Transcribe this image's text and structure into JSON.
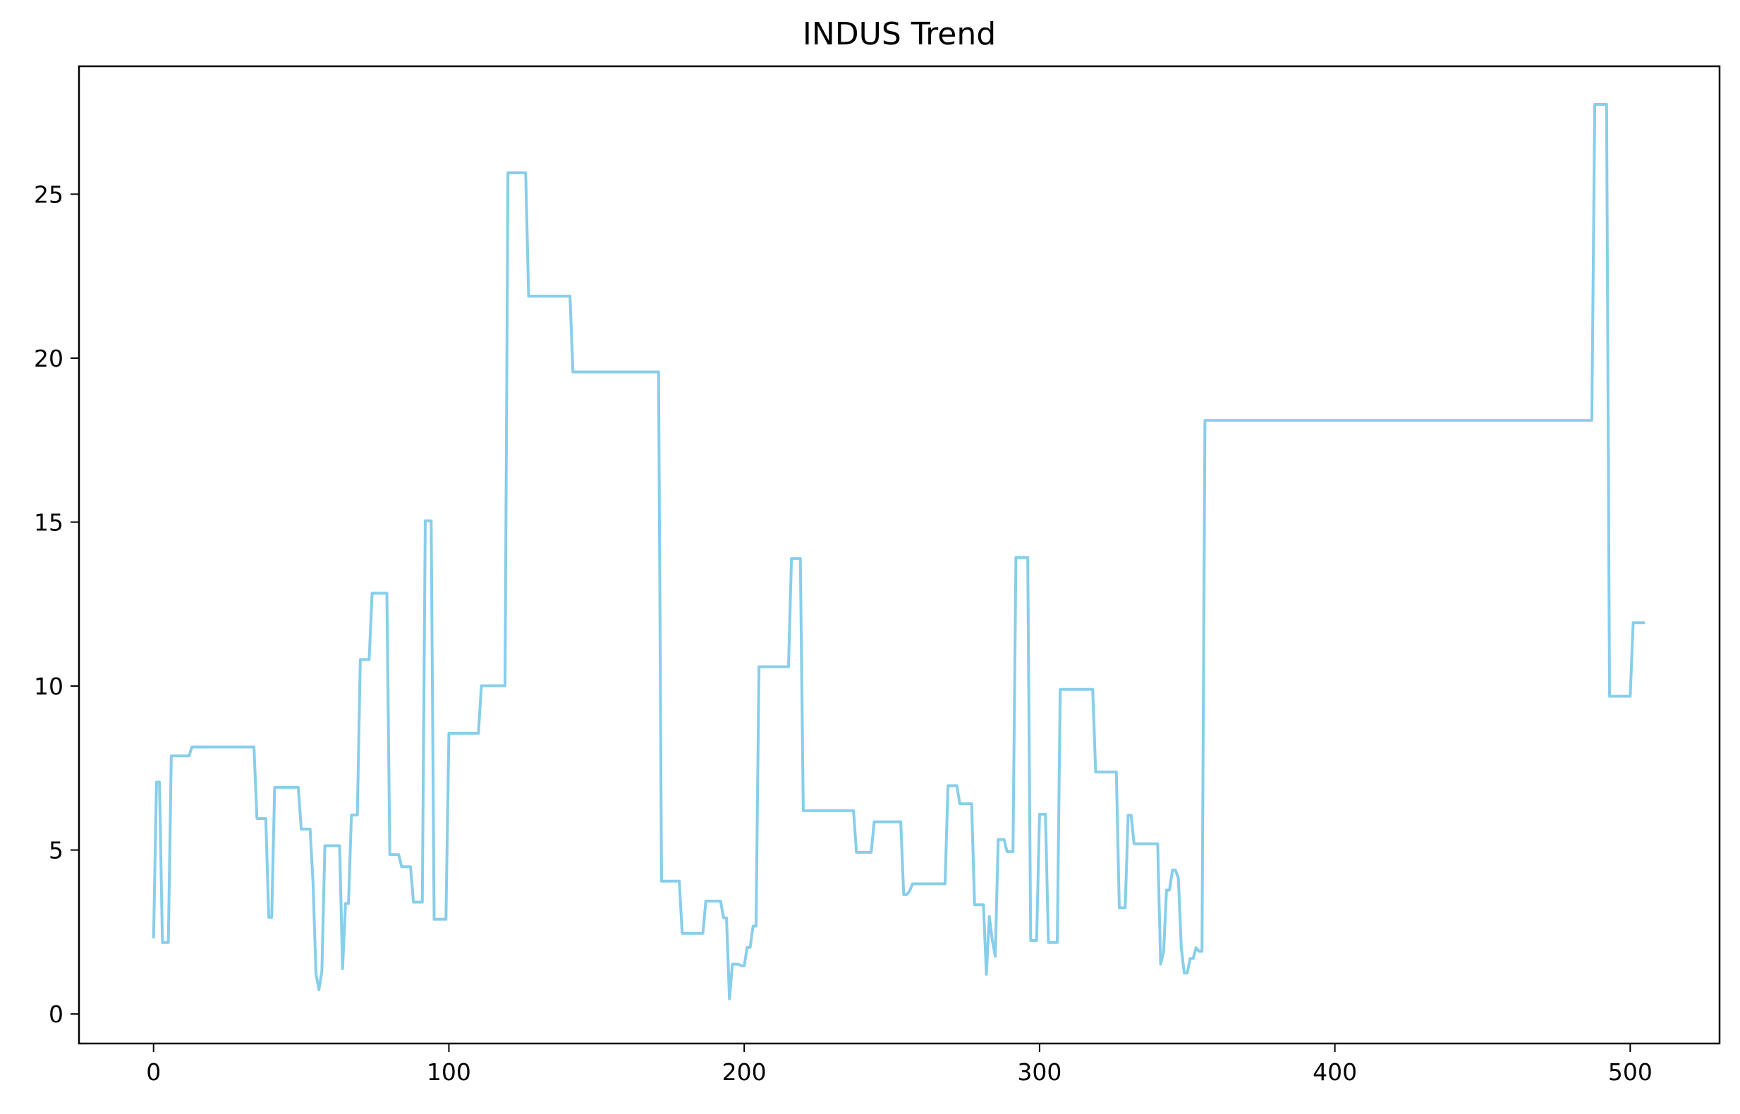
{
  "chart_data": {
    "type": "line",
    "title": "INDUS Trend",
    "xlabel": "",
    "ylabel": "",
    "xlim": [
      -25.25,
      530.25
    ],
    "ylim": [
      -0.9,
      28.9
    ],
    "xticks": [
      0,
      100,
      200,
      300,
      400,
      500
    ],
    "yticks": [
      0,
      5,
      10,
      15,
      20,
      25
    ],
    "grid": false,
    "legend": "none",
    "series": [
      {
        "color": "#87ceeb",
        "points": [
          [
            0,
            2.31
          ],
          [
            1,
            7.07
          ],
          [
            2,
            7.07
          ],
          [
            3,
            2.18
          ],
          [
            4,
            2.18
          ],
          [
            5,
            2.18
          ],
          [
            6,
            7.87
          ],
          [
            12,
            7.87
          ],
          [
            13,
            8.14
          ],
          [
            34,
            8.14
          ],
          [
            35,
            5.96
          ],
          [
            38,
            5.96
          ],
          [
            39,
            2.95
          ],
          [
            40,
            2.95
          ],
          [
            41,
            6.91
          ],
          [
            49,
            6.91
          ],
          [
            50,
            5.64
          ],
          [
            53,
            5.64
          ],
          [
            54,
            4.0
          ],
          [
            55,
            1.22
          ],
          [
            56,
            0.74
          ],
          [
            57,
            1.32
          ],
          [
            58,
            5.13
          ],
          [
            63,
            5.13
          ],
          [
            64,
            1.38
          ],
          [
            65,
            3.37
          ],
          [
            66,
            3.37
          ],
          [
            67,
            6.07
          ],
          [
            69,
            6.07
          ],
          [
            70,
            10.81
          ],
          [
            73,
            10.81
          ],
          [
            74,
            12.83
          ],
          [
            79,
            12.83
          ],
          [
            80,
            4.86
          ],
          [
            83,
            4.86
          ],
          [
            84,
            4.49
          ],
          [
            87,
            4.49
          ],
          [
            88,
            3.41
          ],
          [
            91,
            3.41
          ],
          [
            92,
            15.04
          ],
          [
            94,
            15.04
          ],
          [
            95,
            2.89
          ],
          [
            99,
            2.89
          ],
          [
            100,
            8.56
          ],
          [
            110,
            8.56
          ],
          [
            111,
            10.01
          ],
          [
            119,
            10.01
          ],
          [
            120,
            25.65
          ],
          [
            126,
            25.65
          ],
          [
            127,
            21.89
          ],
          [
            141,
            21.89
          ],
          [
            142,
            19.58
          ],
          [
            171,
            19.58
          ],
          [
            172,
            4.05
          ],
          [
            178,
            4.05
          ],
          [
            179,
            2.46
          ],
          [
            186,
            2.46
          ],
          [
            187,
            3.44
          ],
          [
            192,
            3.44
          ],
          [
            193,
            2.93
          ],
          [
            194,
            2.93
          ],
          [
            195,
            0.46
          ],
          [
            196,
            1.52
          ],
          [
            198,
            1.52
          ],
          [
            199,
            1.47
          ],
          [
            200,
            1.47
          ],
          [
            201,
            2.03
          ],
          [
            202,
            2.03
          ],
          [
            203,
            2.68
          ],
          [
            204,
            2.68
          ],
          [
            205,
            10.59
          ],
          [
            215,
            10.59
          ],
          [
            216,
            13.89
          ],
          [
            219,
            13.89
          ],
          [
            220,
            6.2
          ],
          [
            237,
            6.2
          ],
          [
            238,
            4.93
          ],
          [
            243,
            4.93
          ],
          [
            244,
            5.86
          ],
          [
            253,
            5.86
          ],
          [
            254,
            3.64
          ],
          [
            255,
            3.64
          ],
          [
            256,
            3.75
          ],
          [
            257,
            3.97
          ],
          [
            268,
            3.97
          ],
          [
            269,
            6.96
          ],
          [
            272,
            6.96
          ],
          [
            273,
            6.41
          ],
          [
            277,
            6.41
          ],
          [
            278,
            3.33
          ],
          [
            281,
            3.33
          ],
          [
            282,
            1.21
          ],
          [
            283,
            2.97
          ],
          [
            284,
            2.25
          ],
          [
            285,
            1.76
          ],
          [
            286,
            5.32
          ],
          [
            288,
            5.32
          ],
          [
            289,
            4.95
          ],
          [
            291,
            4.95
          ],
          [
            292,
            13.92
          ],
          [
            296,
            13.92
          ],
          [
            297,
            2.24
          ],
          [
            299,
            2.24
          ],
          [
            300,
            6.09
          ],
          [
            302,
            6.09
          ],
          [
            303,
            2.18
          ],
          [
            306,
            2.18
          ],
          [
            307,
            9.9
          ],
          [
            318,
            9.9
          ],
          [
            319,
            7.38
          ],
          [
            326,
            7.38
          ],
          [
            327,
            3.24
          ],
          [
            329,
            3.24
          ],
          [
            330,
            6.06
          ],
          [
            331,
            6.06
          ],
          [
            332,
            5.19
          ],
          [
            340,
            5.19
          ],
          [
            341,
            1.52
          ],
          [
            342,
            1.89
          ],
          [
            343,
            3.78
          ],
          [
            344,
            3.78
          ],
          [
            345,
            4.39
          ],
          [
            346,
            4.39
          ],
          [
            347,
            4.15
          ],
          [
            348,
            2.01
          ],
          [
            349,
            1.25
          ],
          [
            350,
            1.25
          ],
          [
            351,
            1.69
          ],
          [
            352,
            1.69
          ],
          [
            353,
            2.02
          ],
          [
            354,
            1.91
          ],
          [
            355,
            1.91
          ],
          [
            356,
            18.1
          ],
          [
            487,
            18.1
          ],
          [
            488,
            27.74
          ],
          [
            492,
            27.74
          ],
          [
            493,
            9.69
          ],
          [
            500,
            9.69
          ],
          [
            501,
            11.93
          ],
          [
            505,
            11.93
          ]
        ]
      }
    ]
  }
}
